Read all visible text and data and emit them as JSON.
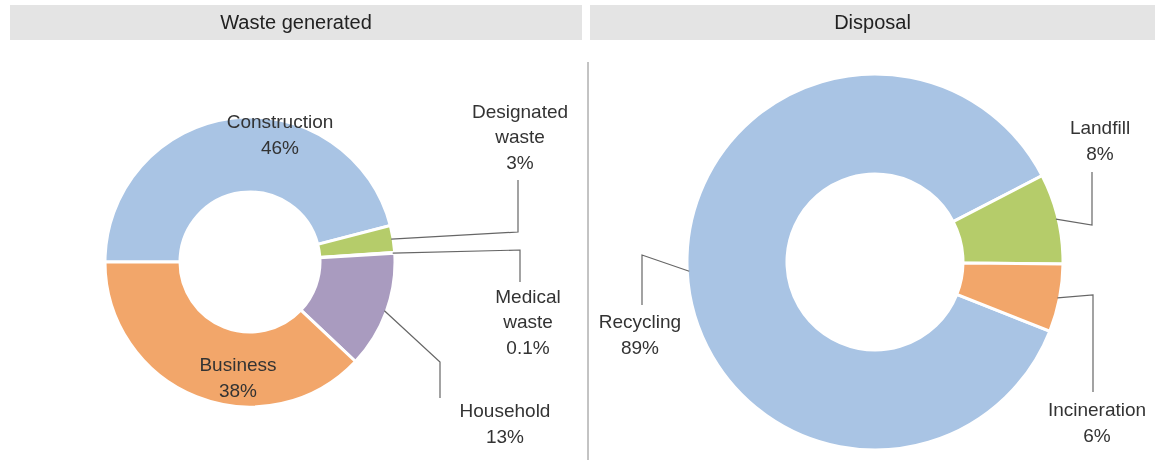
{
  "chart_data": [
    {
      "type": "donut",
      "title": "Waste generated",
      "categories": [
        "Construction",
        "Designated waste",
        "Medical waste",
        "Household",
        "Business"
      ],
      "values": [
        46,
        3,
        0.1,
        13,
        38
      ],
      "value_labels": [
        "46%",
        "3%",
        "0.1%",
        "13%",
        "38%"
      ],
      "colors": [
        "#a9c4e4",
        "#b5cc6a",
        "#e05a5a",
        "#a99bbf",
        "#f2a66a"
      ]
    },
    {
      "type": "donut",
      "title": "Disposal",
      "categories": [
        "Recycling",
        "Landfill",
        "Incineration"
      ],
      "values": [
        89,
        8,
        6
      ],
      "value_labels": [
        "89%",
        "8%",
        "6%"
      ],
      "colors": [
        "#a9c4e4",
        "#b5cc6a",
        "#f2a66a"
      ]
    }
  ]
}
